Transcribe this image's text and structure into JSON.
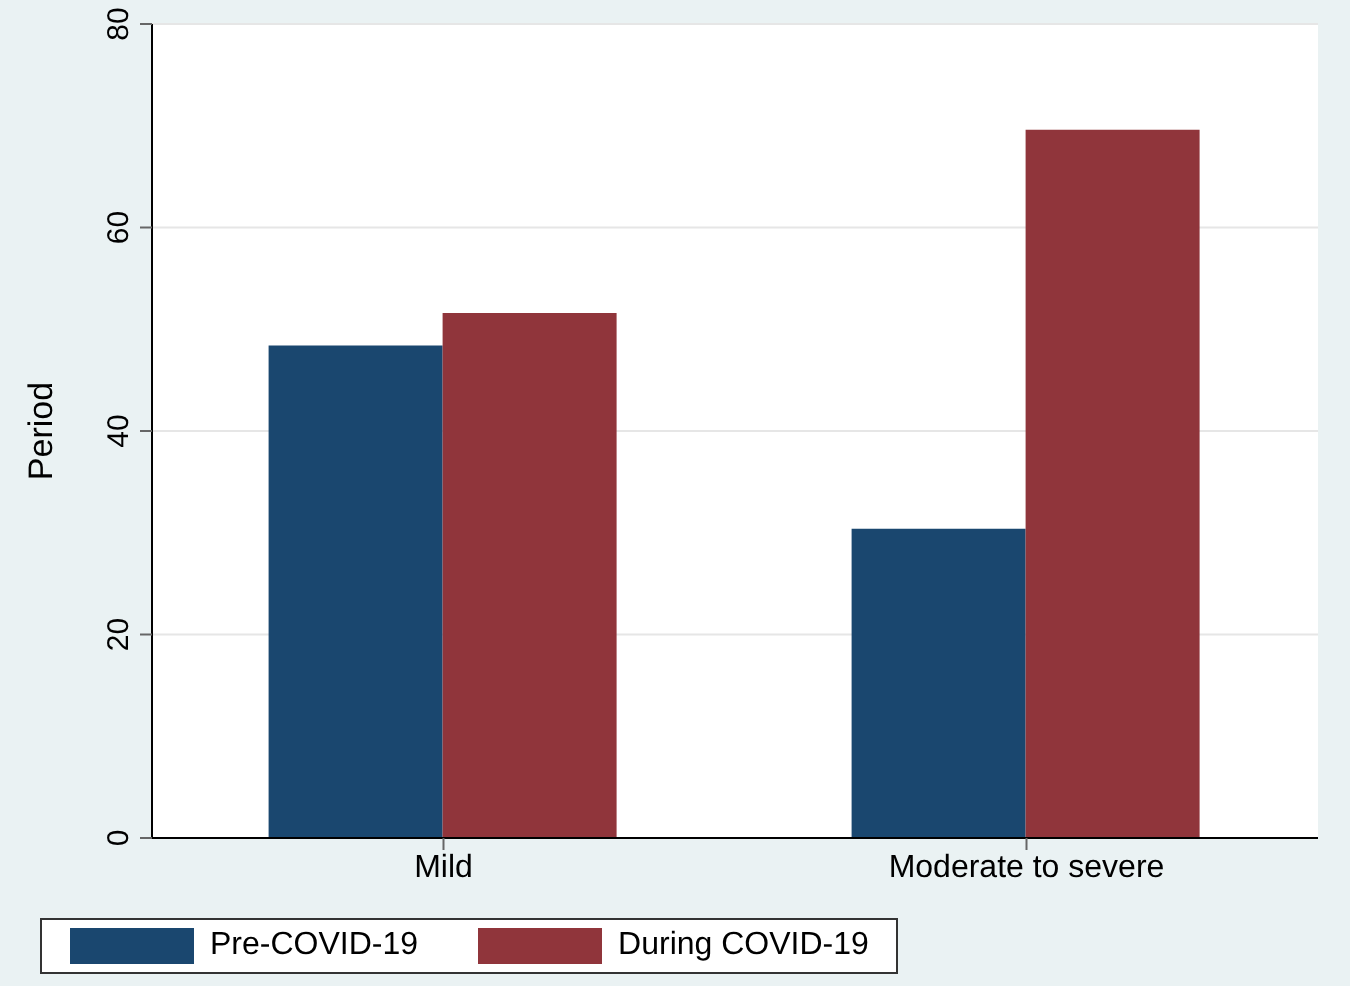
{
  "chart_data": {
    "type": "bar",
    "ylabel": "Period",
    "categories": [
      "Mild",
      "Moderate to severe"
    ],
    "series": [
      {
        "name": "Pre-COVID-19",
        "color": "#1a476f",
        "values": [
          48.4,
          30.4
        ]
      },
      {
        "name": "During COVID-19",
        "color": "#90353b",
        "values": [
          51.6,
          69.6
        ]
      }
    ],
    "ylim": [
      0,
      80
    ],
    "yticks": [
      0,
      20,
      40,
      60,
      80
    ],
    "grid": "y",
    "legend": "bottom"
  }
}
